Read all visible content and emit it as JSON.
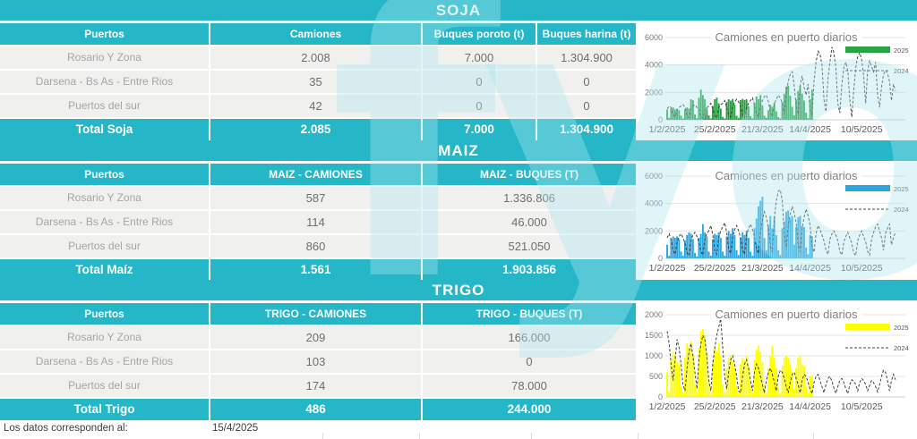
{
  "colors": {
    "accent": "#25b7c8",
    "row_bg": "#f0f0ef",
    "soja_green": "#27a244",
    "maiz_blue": "#2aa6e0",
    "trigo_yellow": "#ffff00",
    "line_2024": "#3f3f3f"
  },
  "watermark_text": "fyo",
  "footer": {
    "label": "Los datos corresponden al:",
    "date": "15/4/2025"
  },
  "sections": [
    {
      "title": "SOJA",
      "columns": [
        "Puertos",
        "Camiones",
        "Buques poroto (t)",
        "Buques harina (t)"
      ],
      "rows": [
        {
          "label": "Rosario Y Zona",
          "values": [
            "2.008",
            "7.000",
            "1.304.900"
          ]
        },
        {
          "label": "Darsena - Bs As - Entre Rios",
          "values": [
            "35",
            "0",
            "0"
          ]
        },
        {
          "label": "Puertos del sur",
          "values": [
            "42",
            "0",
            "0"
          ]
        }
      ],
      "total": {
        "label": "Total Soja",
        "values": [
          "2.085",
          "7.000",
          "1.304.900"
        ]
      }
    },
    {
      "title": "MAIZ",
      "columns": [
        "Puertos",
        "MAIZ - CAMIONES",
        "MAIZ - BUQUES (T)"
      ],
      "rows": [
        {
          "label": "Rosario Y Zona",
          "values": [
            "587",
            "1.336.806"
          ]
        },
        {
          "label": "Darsena - Bs As - Entre Rios",
          "values": [
            "114",
            "46.000"
          ]
        },
        {
          "label": "Puertos del sur",
          "values": [
            "860",
            "521.050"
          ]
        }
      ],
      "total": {
        "label": "Total Maíz",
        "values": [
          "1.561",
          "1.903.856"
        ]
      }
    },
    {
      "title": "TRIGO",
      "columns": [
        "Puertos",
        "TRIGO - CAMIONES",
        "TRIGO - BUQUES (T)"
      ],
      "rows": [
        {
          "label": "Rosario Y Zona",
          "values": [
            "209",
            "166.000"
          ]
        },
        {
          "label": "Darsena - Bs As - Entre Rios",
          "values": [
            "103",
            "0"
          ]
        },
        {
          "label": "Puertos del sur",
          "values": [
            "174",
            "78.000"
          ]
        }
      ],
      "total": {
        "label": "Total Trigo",
        "values": [
          "486",
          "244.000"
        ]
      }
    }
  ],
  "chart_data": [
    {
      "type": "bar",
      "commodity_table": "SOJA",
      "title": "Camiones en puerto diarios",
      "xlabel": "",
      "ylabel": "",
      "ylim": [
        0,
        6000
      ],
      "yticks": [
        0,
        2000,
        4000,
        6000
      ],
      "x_range_days": 120,
      "x_ticks": [
        {
          "day": 0,
          "label": "1/2/2025"
        },
        {
          "day": 24,
          "label": "25/2/2025"
        },
        {
          "day": 48,
          "label": "21/3/2025"
        },
        {
          "day": 72,
          "label": "14/4/2025"
        },
        {
          "day": 98,
          "label": "10/5/2025"
        }
      ],
      "legend_position": "right",
      "series": [
        {
          "name": "2025",
          "type": "bar",
          "color": "#27a244",
          "values": [
            750,
            150,
            820,
            900,
            760,
            800,
            700,
            300,
            100,
            760,
            900,
            820,
            1500,
            1430,
            400,
            120,
            1600,
            2200,
            1800,
            1500,
            900,
            320,
            110,
            1000,
            1500,
            1620,
            1200,
            820,
            220,
            100,
            1300,
            1500,
            1400,
            1520,
            1100,
            300,
            140,
            1440,
            1520,
            1450,
            1500,
            1000,
            260,
            110,
            1200,
            1700,
            1500,
            1800,
            1050,
            300,
            150,
            700,
            1100,
            950,
            1250,
            620,
            200,
            100,
            1300,
            1900,
            2430,
            2500,
            1750,
            950,
            320,
            1500,
            2100,
            2480,
            1900,
            1400,
            520,
            120,
            1500,
            2200
          ]
        },
        {
          "name": "2024",
          "type": "line",
          "dashed": true,
          "color": "#3f3f3f",
          "values": [
            800,
            1000,
            900,
            400,
            200,
            700,
            900,
            1000,
            1100,
            900,
            300,
            150,
            800,
            1000,
            1100,
            900,
            800,
            250,
            100,
            700,
            900,
            1000,
            1200,
            800,
            300,
            150,
            900,
            1100,
            1200,
            1400,
            900,
            350,
            200,
            1000,
            1300,
            1500,
            1300,
            1000,
            300,
            150,
            900,
            1200,
            1400,
            1600,
            1100,
            400,
            200,
            1100,
            1400,
            1700,
            1800,
            1300,
            500,
            250,
            1200,
            1500,
            1800,
            1600,
            1200,
            400,
            2000,
            2800,
            3300,
            3500,
            2500,
            1000,
            400,
            2500,
            3200,
            2400,
            1800,
            2600,
            800,
            300,
            2800,
            4200,
            5000,
            4800,
            4000,
            1500,
            600,
            3000,
            4200,
            5300,
            4900,
            3800,
            1200,
            500,
            2600,
            3800,
            4200,
            3600,
            1500,
            200,
            2200,
            3800,
            4600,
            4900,
            4400,
            3200,
            1200,
            3600,
            4300,
            3900,
            3500,
            4200,
            1800,
            900,
            2400,
            3300,
            3600,
            3400,
            2800,
            1400,
            2600,
            2100
          ]
        }
      ]
    },
    {
      "type": "bar",
      "commodity_table": "MAIZ",
      "title": "Camiones en puerto diarios",
      "xlabel": "",
      "ylabel": "",
      "ylim": [
        0,
        6000
      ],
      "yticks": [
        0,
        2000,
        4000,
        6000
      ],
      "x_range_days": 120,
      "x_ticks": [
        {
          "day": 0,
          "label": "1/2/2025"
        },
        {
          "day": 24,
          "label": "25/2/2025"
        },
        {
          "day": 48,
          "label": "21/3/2025"
        },
        {
          "day": 72,
          "label": "14/4/2025"
        },
        {
          "day": 98,
          "label": "10/5/2025"
        }
      ],
      "legend_position": "right",
      "series": [
        {
          "name": "2025",
          "type": "bar",
          "color": "#2aa6e0",
          "values": [
            1000,
            200,
            1400,
            1600,
            1500,
            1600,
            1400,
            500,
            200,
            1300,
            1700,
            1900,
            1800,
            1400,
            400,
            150,
            1500,
            1800,
            2500,
            1900,
            1600,
            500,
            200,
            1400,
            1800,
            1700,
            1900,
            1500,
            500,
            200,
            1600,
            2000,
            1800,
            2200,
            1700,
            600,
            250,
            1500,
            1900,
            1700,
            2000,
            1500,
            500,
            200,
            2200,
            2900,
            3800,
            4200,
            4500,
            1500,
            600,
            2400,
            3100,
            2200,
            3050,
            1700,
            600,
            250,
            2200,
            2700,
            3400,
            3500,
            2900,
            3100,
            1000,
            2300,
            3000,
            3100,
            2350,
            2300,
            800,
            300,
            1700,
            1600
          ]
        },
        {
          "name": "2024",
          "type": "line",
          "dashed": true,
          "color": "#3f3f3f",
          "values": [
            1500,
            1800,
            1400,
            600,
            300,
            1200,
            1600,
            1800,
            1500,
            1100,
            400,
            200,
            1300,
            1700,
            1900,
            1600,
            1200,
            500,
            250,
            1400,
            1800,
            2000,
            2400,
            1700,
            600,
            300,
            1500,
            2000,
            2300,
            2600,
            1900,
            700,
            350,
            1600,
            2100,
            2400,
            2000,
            1500,
            600,
            300,
            1700,
            2200,
            2500,
            2100,
            1600,
            700,
            350,
            2000,
            2800,
            3400,
            3000,
            2200,
            900,
            450,
            3000,
            4200,
            4900,
            5000,
            4200,
            1800,
            800,
            2400,
            3200,
            3800,
            3300,
            2600,
            1000,
            500,
            2200,
            3000,
            3600,
            3100,
            2400,
            900,
            450,
            1800,
            2400,
            2100,
            1700,
            1300,
            600,
            300,
            1400,
            1800,
            2000,
            1700,
            1300,
            500,
            250,
            1200,
            1600,
            1900,
            1500,
            1100,
            400,
            200,
            1300,
            1700,
            2000,
            1600,
            1200,
            500,
            250,
            1400,
            1900,
            2300,
            2500,
            2000,
            1500,
            600,
            1800,
            2200,
            2500,
            1000,
            1500,
            1900
          ]
        }
      ]
    },
    {
      "type": "bar",
      "commodity_table": "TRIGO",
      "title": "Camiones en puerto diarios",
      "xlabel": "",
      "ylabel": "",
      "ylim": [
        0,
        2000
      ],
      "yticks": [
        0,
        500,
        1000,
        1500,
        2000
      ],
      "x_range_days": 120,
      "x_ticks": [
        {
          "day": 0,
          "label": "1/2/2025"
        },
        {
          "day": 24,
          "label": "25/2/2025"
        },
        {
          "day": 48,
          "label": "21/3/2025"
        },
        {
          "day": 72,
          "label": "14/4/2025"
        },
        {
          "day": 98,
          "label": "10/5/2025"
        }
      ],
      "legend_position": "right",
      "series": [
        {
          "name": "2025",
          "type": "bar",
          "color": "#ffff00",
          "values": [
            600,
            120,
            900,
            1100,
            1000,
            850,
            800,
            250,
            100,
            950,
            1300,
            1200,
            1350,
            1000,
            300,
            100,
            1200,
            1600,
            1650,
            1500,
            1100,
            350,
            100,
            900,
            1200,
            1100,
            1300,
            1000,
            300,
            100,
            700,
            950,
            1000,
            850,
            700,
            250,
            100,
            800,
            950,
            900,
            1000,
            750,
            250,
            100,
            900,
            1150,
            1250,
            1100,
            850,
            300,
            100,
            700,
            1000,
            1250,
            950,
            700,
            250,
            100,
            750,
            950,
            1000,
            950,
            800,
            600,
            200,
            700,
            950,
            1000,
            800,
            750,
            250,
            100,
            500,
            520
          ]
        },
        {
          "name": "2024",
          "type": "line",
          "dashed": true,
          "color": "#3f3f3f",
          "values": [
            1600,
            1300,
            800,
            400,
            900,
            1400,
            1200,
            800,
            300,
            150,
            700,
            1100,
            1300,
            1000,
            600,
            200,
            900,
            1300,
            1500,
            1400,
            1000,
            400,
            150,
            800,
            1200,
            1500,
            1700,
            1900,
            1200,
            500,
            200,
            600,
            900,
            1000,
            800,
            500,
            150,
            100,
            500,
            800,
            900,
            700,
            400,
            150,
            600,
            800,
            700,
            500,
            300,
            100,
            400,
            600,
            700,
            550,
            350,
            150,
            500,
            650,
            600,
            450,
            250,
            100,
            350,
            550,
            600,
            450,
            300,
            100,
            400,
            550,
            500,
            350,
            200,
            80,
            350,
            500,
            550,
            400,
            250,
            100,
            300,
            450,
            500,
            380,
            220,
            90,
            250,
            400,
            450,
            350,
            200,
            80,
            300,
            420,
            380,
            300,
            150,
            350,
            450,
            400,
            300,
            150,
            280,
            400,
            350,
            250,
            120,
            300,
            500,
            650,
            600,
            400,
            150,
            400,
            550,
            420
          ]
        }
      ]
    }
  ]
}
